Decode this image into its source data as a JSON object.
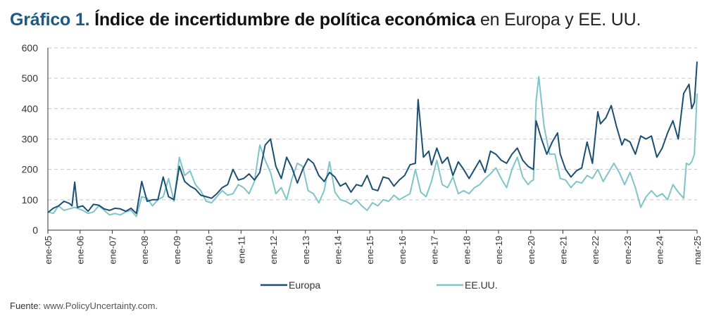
{
  "title": {
    "number": "Gráfico 1.",
    "bold": "Índice de incertidumbre de política económica",
    "rest": "en Europa y EE. UU."
  },
  "source": {
    "label": "Fuente",
    "text": ": www.PolicyUncertainty.com."
  },
  "chart_data": {
    "type": "line",
    "title": "Índice de incertidumbre de política económica en Europa y EE. UU.",
    "xlabel": "",
    "ylabel": "",
    "ylim": [
      0,
      600
    ],
    "yticks": [
      0,
      100,
      200,
      300,
      400,
      500,
      600
    ],
    "xlim": [
      "2005-01",
      "2025-03"
    ],
    "xticks": [
      "ene-05",
      "ene-06",
      "ene-07",
      "ene-08",
      "ene-09",
      "ene-10",
      "ene-11",
      "ene-12",
      "ene-13",
      "ene-14",
      "ene-15",
      "ene-16",
      "ene-17",
      "ene-18",
      "ene-19",
      "ene-20",
      "ene-21",
      "ene-22",
      "ene-23",
      "ene-24",
      "mar-25"
    ],
    "grid": "horizontal dashed",
    "legend_position": "bottom",
    "colors": {
      "europa": "#1b4f72",
      "eeuu": "#7ec4c9"
    },
    "series": [
      {
        "name": "Europa",
        "color": "#1b4f72",
        "points": [
          [
            "2005-01",
            58
          ],
          [
            "2005-03",
            72
          ],
          [
            "2005-05",
            80
          ],
          [
            "2005-07",
            95
          ],
          [
            "2005-09",
            88
          ],
          [
            "2005-10",
            80
          ],
          [
            "2005-11",
            158
          ],
          [
            "2005-12",
            75
          ],
          [
            "2006-02",
            80
          ],
          [
            "2006-04",
            62
          ],
          [
            "2006-06",
            85
          ],
          [
            "2006-08",
            82
          ],
          [
            "2006-10",
            70
          ],
          [
            "2006-12",
            65
          ],
          [
            "2007-02",
            72
          ],
          [
            "2007-04",
            70
          ],
          [
            "2007-06",
            62
          ],
          [
            "2007-08",
            72
          ],
          [
            "2007-10",
            55
          ],
          [
            "2007-12",
            160
          ],
          [
            "2008-02",
            95
          ],
          [
            "2008-04",
            100
          ],
          [
            "2008-06",
            100
          ],
          [
            "2008-08",
            175
          ],
          [
            "2008-10",
            110
          ],
          [
            "2008-12",
            100
          ],
          [
            "2009-02",
            210
          ],
          [
            "2009-04",
            160
          ],
          [
            "2009-06",
            145
          ],
          [
            "2009-08",
            135
          ],
          [
            "2009-10",
            115
          ],
          [
            "2009-12",
            110
          ],
          [
            "2010-02",
            105
          ],
          [
            "2010-04",
            120
          ],
          [
            "2010-06",
            140
          ],
          [
            "2010-08",
            150
          ],
          [
            "2010-10",
            200
          ],
          [
            "2010-12",
            165
          ],
          [
            "2011-02",
            170
          ],
          [
            "2011-04",
            185
          ],
          [
            "2011-06",
            165
          ],
          [
            "2011-08",
            190
          ],
          [
            "2011-10",
            280
          ],
          [
            "2011-12",
            300
          ],
          [
            "2012-02",
            210
          ],
          [
            "2012-04",
            170
          ],
          [
            "2012-06",
            240
          ],
          [
            "2012-08",
            205
          ],
          [
            "2012-10",
            155
          ],
          [
            "2012-12",
            200
          ],
          [
            "2013-02",
            235
          ],
          [
            "2013-04",
            220
          ],
          [
            "2013-06",
            180
          ],
          [
            "2013-08",
            160
          ],
          [
            "2013-10",
            190
          ],
          [
            "2013-12",
            175
          ],
          [
            "2014-02",
            145
          ],
          [
            "2014-04",
            155
          ],
          [
            "2014-06",
            125
          ],
          [
            "2014-08",
            150
          ],
          [
            "2014-10",
            145
          ],
          [
            "2014-12",
            180
          ],
          [
            "2015-02",
            135
          ],
          [
            "2015-04",
            130
          ],
          [
            "2015-06",
            175
          ],
          [
            "2015-08",
            170
          ],
          [
            "2015-10",
            145
          ],
          [
            "2015-12",
            165
          ],
          [
            "2016-02",
            180
          ],
          [
            "2016-04",
            215
          ],
          [
            "2016-06",
            220
          ],
          [
            "2016-07",
            430
          ],
          [
            "2016-09",
            240
          ],
          [
            "2016-11",
            260
          ],
          [
            "2016-12",
            215
          ],
          [
            "2017-02",
            270
          ],
          [
            "2017-04",
            220
          ],
          [
            "2017-06",
            240
          ],
          [
            "2017-08",
            180
          ],
          [
            "2017-10",
            225
          ],
          [
            "2017-12",
            200
          ],
          [
            "2018-02",
            170
          ],
          [
            "2018-04",
            200
          ],
          [
            "2018-06",
            230
          ],
          [
            "2018-08",
            190
          ],
          [
            "2018-10",
            260
          ],
          [
            "2018-12",
            250
          ],
          [
            "2019-02",
            230
          ],
          [
            "2019-04",
            220
          ],
          [
            "2019-06",
            250
          ],
          [
            "2019-08",
            270
          ],
          [
            "2019-10",
            230
          ],
          [
            "2019-12",
            210
          ],
          [
            "2020-02",
            200
          ],
          [
            "2020-03",
            360
          ],
          [
            "2020-05",
            300
          ],
          [
            "2020-07",
            250
          ],
          [
            "2020-09",
            290
          ],
          [
            "2020-11",
            320
          ],
          [
            "2020-12",
            250
          ],
          [
            "2021-02",
            200
          ],
          [
            "2021-04",
            175
          ],
          [
            "2021-06",
            195
          ],
          [
            "2021-08",
            205
          ],
          [
            "2021-10",
            290
          ],
          [
            "2021-12",
            220
          ],
          [
            "2022-02",
            390
          ],
          [
            "2022-03",
            350
          ],
          [
            "2022-05",
            370
          ],
          [
            "2022-07",
            410
          ],
          [
            "2022-09",
            340
          ],
          [
            "2022-11",
            280
          ],
          [
            "2022-12",
            300
          ],
          [
            "2023-02",
            290
          ],
          [
            "2023-04",
            250
          ],
          [
            "2023-06",
            310
          ],
          [
            "2023-08",
            300
          ],
          [
            "2023-10",
            310
          ],
          [
            "2023-12",
            240
          ],
          [
            "2024-02",
            270
          ],
          [
            "2024-04",
            320
          ],
          [
            "2024-06",
            360
          ],
          [
            "2024-08",
            300
          ],
          [
            "2024-10",
            450
          ],
          [
            "2024-12",
            480
          ],
          [
            "2025-01",
            400
          ],
          [
            "2025-02",
            420
          ],
          [
            "2025-03",
            555
          ]
        ]
      },
      {
        "name": "EE.UU.",
        "color": "#7ec4c9",
        "points": [
          [
            "2005-01",
            60
          ],
          [
            "2005-03",
            55
          ],
          [
            "2005-05",
            80
          ],
          [
            "2005-07",
            65
          ],
          [
            "2005-09",
            70
          ],
          [
            "2005-11",
            75
          ],
          [
            "2006-02",
            65
          ],
          [
            "2006-04",
            55
          ],
          [
            "2006-06",
            60
          ],
          [
            "2006-08",
            80
          ],
          [
            "2006-10",
            65
          ],
          [
            "2006-12",
            50
          ],
          [
            "2007-02",
            55
          ],
          [
            "2007-04",
            50
          ],
          [
            "2007-06",
            60
          ],
          [
            "2007-08",
            65
          ],
          [
            "2007-10",
            45
          ],
          [
            "2007-12",
            110
          ],
          [
            "2008-02",
            105
          ],
          [
            "2008-04",
            80
          ],
          [
            "2008-06",
            100
          ],
          [
            "2008-08",
            110
          ],
          [
            "2008-10",
            170
          ],
          [
            "2008-12",
            95
          ],
          [
            "2009-02",
            240
          ],
          [
            "2009-04",
            180
          ],
          [
            "2009-06",
            195
          ],
          [
            "2009-08",
            150
          ],
          [
            "2009-10",
            130
          ],
          [
            "2009-12",
            95
          ],
          [
            "2010-02",
            90
          ],
          [
            "2010-04",
            110
          ],
          [
            "2010-06",
            130
          ],
          [
            "2010-08",
            115
          ],
          [
            "2010-10",
            120
          ],
          [
            "2010-12",
            150
          ],
          [
            "2011-02",
            140
          ],
          [
            "2011-04",
            120
          ],
          [
            "2011-06",
            160
          ],
          [
            "2011-08",
            280
          ],
          [
            "2011-10",
            230
          ],
          [
            "2011-12",
            190
          ],
          [
            "2012-02",
            120
          ],
          [
            "2012-04",
            140
          ],
          [
            "2012-06",
            100
          ],
          [
            "2012-08",
            170
          ],
          [
            "2012-10",
            220
          ],
          [
            "2012-12",
            210
          ],
          [
            "2013-02",
            130
          ],
          [
            "2013-04",
            120
          ],
          [
            "2013-06",
            90
          ],
          [
            "2013-08",
            130
          ],
          [
            "2013-10",
            225
          ],
          [
            "2013-12",
            125
          ],
          [
            "2014-02",
            100
          ],
          [
            "2014-04",
            95
          ],
          [
            "2014-06",
            85
          ],
          [
            "2014-08",
            100
          ],
          [
            "2014-10",
            80
          ],
          [
            "2014-12",
            65
          ],
          [
            "2015-02",
            90
          ],
          [
            "2015-04",
            80
          ],
          [
            "2015-06",
            100
          ],
          [
            "2015-08",
            95
          ],
          [
            "2015-10",
            115
          ],
          [
            "2015-12",
            100
          ],
          [
            "2016-02",
            110
          ],
          [
            "2016-04",
            120
          ],
          [
            "2016-06",
            200
          ],
          [
            "2016-08",
            125
          ],
          [
            "2016-10",
            110
          ],
          [
            "2016-12",
            160
          ],
          [
            "2017-02",
            230
          ],
          [
            "2017-04",
            150
          ],
          [
            "2017-06",
            140
          ],
          [
            "2017-08",
            175
          ],
          [
            "2017-10",
            120
          ],
          [
            "2017-12",
            130
          ],
          [
            "2018-02",
            120
          ],
          [
            "2018-04",
            140
          ],
          [
            "2018-06",
            150
          ],
          [
            "2018-08",
            170
          ],
          [
            "2018-10",
            185
          ],
          [
            "2018-12",
            205
          ],
          [
            "2019-02",
            170
          ],
          [
            "2019-04",
            140
          ],
          [
            "2019-06",
            200
          ],
          [
            "2019-08",
            240
          ],
          [
            "2019-10",
            175
          ],
          [
            "2019-12",
            150
          ],
          [
            "2020-01",
            160
          ],
          [
            "2020-02",
            165
          ],
          [
            "2020-03",
            425
          ],
          [
            "2020-04",
            505
          ],
          [
            "2020-06",
            340
          ],
          [
            "2020-08",
            250
          ],
          [
            "2020-10",
            250
          ],
          [
            "2020-12",
            170
          ],
          [
            "2021-02",
            165
          ],
          [
            "2021-04",
            140
          ],
          [
            "2021-06",
            160
          ],
          [
            "2021-08",
            155
          ],
          [
            "2021-10",
            180
          ],
          [
            "2021-12",
            170
          ],
          [
            "2022-02",
            200
          ],
          [
            "2022-04",
            160
          ],
          [
            "2022-06",
            190
          ],
          [
            "2022-08",
            220
          ],
          [
            "2022-10",
            190
          ],
          [
            "2022-12",
            150
          ],
          [
            "2023-02",
            190
          ],
          [
            "2023-04",
            140
          ],
          [
            "2023-06",
            75
          ],
          [
            "2023-08",
            110
          ],
          [
            "2023-10",
            130
          ],
          [
            "2023-12",
            110
          ],
          [
            "2024-02",
            120
          ],
          [
            "2024-04",
            100
          ],
          [
            "2024-06",
            150
          ],
          [
            "2024-08",
            125
          ],
          [
            "2024-10",
            105
          ],
          [
            "2024-11",
            220
          ],
          [
            "2024-12",
            215
          ],
          [
            "2025-01",
            225
          ],
          [
            "2025-02",
            250
          ],
          [
            "2025-03",
            450
          ]
        ]
      }
    ]
  }
}
